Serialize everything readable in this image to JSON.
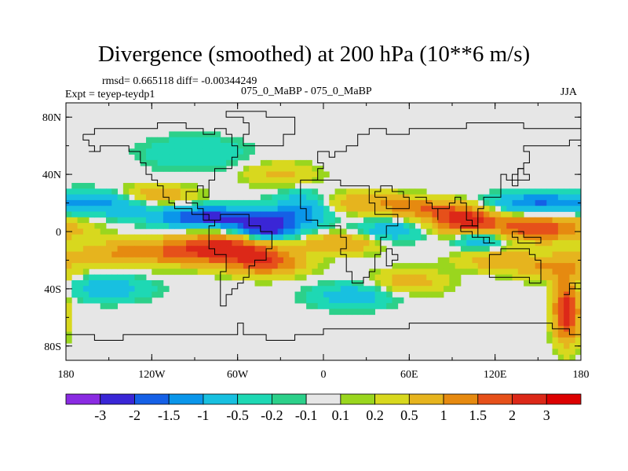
{
  "chart_data": {
    "type": "heatmap",
    "title": "Divergence (smoothed) at 200 hPa (10**6 m/s)",
    "subtitle_stats": "rmsd= 0.665118 diff= -0.00344249",
    "subtitle_expt": "Expt = teyep-teydp1",
    "subtitle_case": "075_0_MaBP - 075_0_MaBP",
    "subtitle_season": "JJA",
    "x_axis": {
      "range": [
        -180,
        180
      ],
      "ticks": [
        {
          "value": -180,
          "label": "180"
        },
        {
          "value": -120,
          "label": "120W"
        },
        {
          "value": -60,
          "label": "60W"
        },
        {
          "value": 0,
          "label": "0"
        },
        {
          "value": 60,
          "label": "60E"
        },
        {
          "value": 120,
          "label": "120E"
        },
        {
          "value": 180,
          "label": "180"
        }
      ]
    },
    "y_axis": {
      "range": [
        -90,
        90
      ],
      "ticks": [
        {
          "value": 80,
          "label": "80N"
        },
        {
          "value": 40,
          "label": "40N"
        },
        {
          "value": 0,
          "label": "0"
        },
        {
          "value": -40,
          "label": "40S"
        },
        {
          "value": -80,
          "label": "80S"
        }
      ]
    },
    "colorbar": {
      "levels": [
        "-3",
        "-2",
        "-1.5",
        "-1",
        "-0.5",
        "-0.2",
        "-0.1",
        "0.1",
        "0.2",
        "0.5",
        "1",
        "1.5",
        "2",
        "3"
      ],
      "colors": [
        "#8a2be2",
        "#3a26d6",
        "#1560e6",
        "#0a96ea",
        "#18c0e0",
        "#1ed8b4",
        "#2cd08a",
        "#e6e6e6",
        "#9ad61e",
        "#d8d81e",
        "#e6b41e",
        "#e68a10",
        "#e6501a",
        "#dc2818",
        "#dc0000"
      ]
    },
    "field": {
      "description": "divergence anomaly pattern, sum of gaussian features",
      "features": [
        {
          "lon": -150,
          "lat": 20,
          "amp": -1.2,
          "slon": 22,
          "slat": 6
        },
        {
          "lon": -120,
          "lat": 25,
          "amp": 1.0,
          "slon": 20,
          "slat": 5
        },
        {
          "lon": -80,
          "lat": 10,
          "amp": -2.2,
          "slon": 25,
          "slat": 5
        },
        {
          "lon": -40,
          "lat": 3,
          "amp": -2.6,
          "slon": 14,
          "slat": 6
        },
        {
          "lon": -15,
          "lat": 15,
          "amp": -1.3,
          "slon": 14,
          "slat": 8
        },
        {
          "lon": -70,
          "lat": -12,
          "amp": 2.4,
          "slon": 25,
          "slat": 7
        },
        {
          "lon": -40,
          "lat": -22,
          "amp": 1.6,
          "slon": 18,
          "slat": 6
        },
        {
          "lon": -130,
          "lat": -15,
          "amp": 1.2,
          "slon": 30,
          "slat": 6
        },
        {
          "lon": -150,
          "lat": -40,
          "amp": -0.8,
          "slon": 20,
          "slat": 6
        },
        {
          "lon": 30,
          "lat": 20,
          "amp": 0.9,
          "slon": 25,
          "slat": 5
        },
        {
          "lon": 15,
          "lat": -8,
          "amp": 1.0,
          "slon": 20,
          "slat": 5
        },
        {
          "lon": 45,
          "lat": 0,
          "amp": -0.9,
          "slon": 15,
          "slat": 6
        },
        {
          "lon": 75,
          "lat": 15,
          "amp": 1.3,
          "slon": 20,
          "slat": 5
        },
        {
          "lon": 100,
          "lat": 7,
          "amp": 2.2,
          "slon": 15,
          "slat": 6
        },
        {
          "lon": 110,
          "lat": -5,
          "amp": -1.1,
          "slon": 12,
          "slat": 5
        },
        {
          "lon": 150,
          "lat": 2,
          "amp": 1.9,
          "slon": 25,
          "slat": 6
        },
        {
          "lon": 150,
          "lat": 20,
          "amp": -1.5,
          "slon": 22,
          "slat": 5
        },
        {
          "lon": 160,
          "lat": -25,
          "amp": 1.0,
          "slon": 18,
          "slat": 6
        },
        {
          "lon": 120,
          "lat": -20,
          "amp": 0.8,
          "slon": 18,
          "slat": 5
        },
        {
          "lon": 20,
          "lat": -45,
          "amp": -0.8,
          "slon": 20,
          "slat": 6
        },
        {
          "lon": 60,
          "lat": -35,
          "amp": 0.7,
          "slon": 18,
          "slat": 6
        },
        {
          "lon": 170,
          "lat": -55,
          "amp": 2.5,
          "slon": 6,
          "slat": 15
        },
        {
          "lon": -30,
          "lat": 40,
          "amp": 0.6,
          "slon": 18,
          "slat": 6
        },
        {
          "lon": -90,
          "lat": 55,
          "amp": -0.5,
          "slon": 25,
          "slat": 8
        }
      ]
    }
  }
}
